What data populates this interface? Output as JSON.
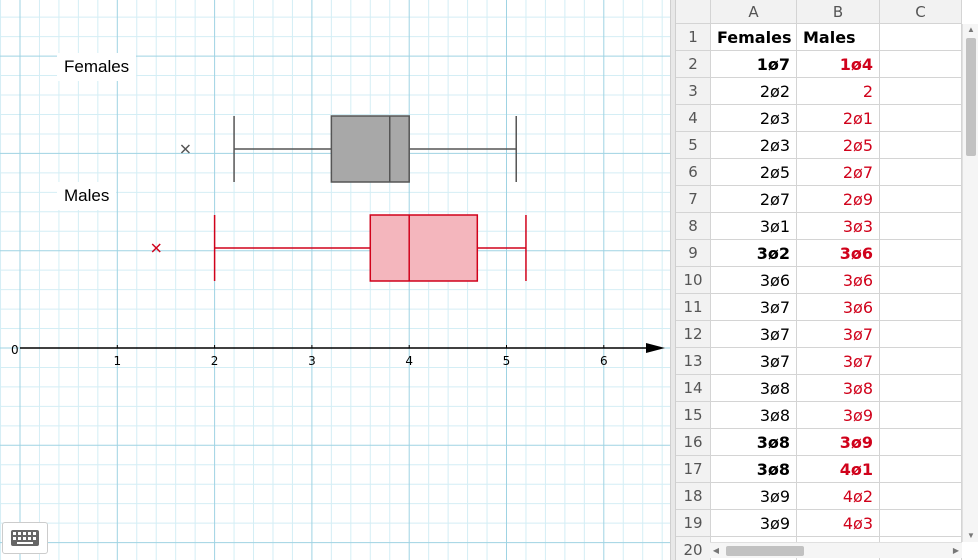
{
  "graphics": {
    "labels": {
      "females": "Females",
      "males": "Males"
    },
    "axis": {
      "origin_label": "0",
      "tick_labels": [
        "1",
        "2",
        "3",
        "4",
        "5",
        "6"
      ],
      "xmin": 0,
      "xmax": 6.5
    },
    "boxplots": [
      {
        "name": "Females",
        "min": 2.2,
        "q1": 3.2,
        "median": 3.8,
        "q3": 4.0,
        "max": 5.1,
        "outliers": [
          1.7
        ],
        "color": "#555555",
        "fill": "#a8a8a8"
      },
      {
        "name": "Males",
        "min": 2.0,
        "q1": 3.6,
        "median": 4.0,
        "q3": 4.7,
        "max": 5.2,
        "outliers": [
          1.4
        ],
        "color": "#d0021b",
        "fill": "#f4b6bd"
      }
    ],
    "icons": {
      "keyboard": "keyboard-icon"
    }
  },
  "spreadsheet": {
    "columns": [
      "A",
      "B",
      "C"
    ],
    "header_row": {
      "row": "1",
      "a": "Females",
      "b": "Males"
    },
    "rows": [
      {
        "row": "2",
        "a": "1ø7",
        "b": "1ø4",
        "bold": true
      },
      {
        "row": "3",
        "a": "2ø2",
        "b": "2",
        "bold": false
      },
      {
        "row": "4",
        "a": "2ø3",
        "b": "2ø1",
        "bold": false
      },
      {
        "row": "5",
        "a": "2ø3",
        "b": "2ø5",
        "bold": false
      },
      {
        "row": "6",
        "a": "2ø5",
        "b": "2ø7",
        "bold": false
      },
      {
        "row": "7",
        "a": "2ø7",
        "b": "2ø9",
        "bold": false
      },
      {
        "row": "8",
        "a": "3ø1",
        "b": "3ø3",
        "bold": false
      },
      {
        "row": "9",
        "a": "3ø2",
        "b": "3ø6",
        "bold": true
      },
      {
        "row": "10",
        "a": "3ø6",
        "b": "3ø6",
        "bold": false
      },
      {
        "row": "11",
        "a": "3ø7",
        "b": "3ø6",
        "bold": false
      },
      {
        "row": "12",
        "a": "3ø7",
        "b": "3ø7",
        "bold": false
      },
      {
        "row": "13",
        "a": "3ø7",
        "b": "3ø7",
        "bold": false
      },
      {
        "row": "14",
        "a": "3ø8",
        "b": "3ø8",
        "bold": false
      },
      {
        "row": "15",
        "a": "3ø8",
        "b": "3ø9",
        "bold": false
      },
      {
        "row": "16",
        "a": "3ø8",
        "b": "3ø9",
        "bold": true
      },
      {
        "row": "17",
        "a": "3ø8",
        "b": "4ø1",
        "bold": true
      },
      {
        "row": "18",
        "a": "3ø9",
        "b": "4ø2",
        "bold": false
      },
      {
        "row": "19",
        "a": "3ø9",
        "b": "4ø3",
        "bold": false
      },
      {
        "row": "20",
        "a": "",
        "b": "",
        "bold": false
      }
    ],
    "colors": {
      "females": "#000000",
      "males": "#d0021b"
    }
  }
}
